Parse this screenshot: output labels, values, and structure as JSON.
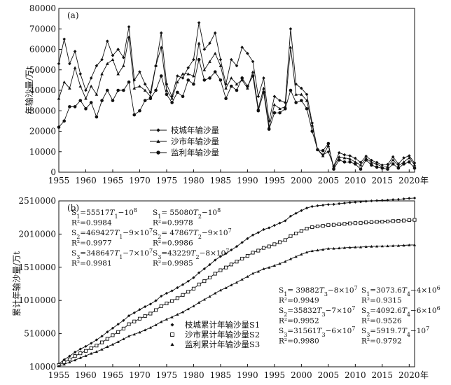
{
  "chart_data": [
    {
      "type": "line",
      "panel_label": "(a)",
      "ylabel": "年输沙量/万t",
      "xunit": "年",
      "xlim": [
        1955,
        2021
      ],
      "ylim": [
        0,
        80000
      ],
      "yticks": [
        0,
        10000,
        20000,
        30000,
        40000,
        50000,
        60000,
        70000,
        80000
      ],
      "xticks": [
        1955,
        1960,
        1965,
        1970,
        1975,
        1980,
        1985,
        1990,
        1995,
        2000,
        2005,
        2010,
        2015,
        2020
      ],
      "legend_position": "lower-left",
      "x": [
        1955,
        1956,
        1957,
        1958,
        1959,
        1960,
        1961,
        1962,
        1963,
        1964,
        1965,
        1966,
        1967,
        1968,
        1969,
        1970,
        1971,
        1972,
        1973,
        1974,
        1975,
        1976,
        1977,
        1978,
        1979,
        1980,
        1981,
        1982,
        1983,
        1984,
        1985,
        1986,
        1987,
        1988,
        1989,
        1990,
        1991,
        1992,
        1993,
        1994,
        1995,
        1996,
        1997,
        1998,
        1999,
        2000,
        2001,
        2002,
        2003,
        2004,
        2005,
        2006,
        2007,
        2008,
        2009,
        2010,
        2011,
        2012,
        2013,
        2014,
        2015,
        2016,
        2017,
        2018,
        2019,
        2020,
        2021
      ],
      "series": [
        {
          "name": "枝城年输沙量",
          "marker": "diamond",
          "values": [
            53000,
            65000,
            53000,
            59000,
            48000,
            40000,
            46000,
            52000,
            55000,
            64000,
            57000,
            60000,
            56000,
            71000,
            45000,
            49000,
            43000,
            39000,
            52000,
            68000,
            43000,
            37000,
            47000,
            46000,
            51000,
            55000,
            73000,
            60000,
            63000,
            68000,
            55000,
            43000,
            55000,
            52000,
            61000,
            58000,
            54000,
            37000,
            46000,
            25000,
            37000,
            35000,
            34000,
            70000,
            43000,
            41000,
            38000,
            24000,
            11000,
            8500,
            10000,
            3000,
            9500,
            8500,
            8000,
            6800,
            4800,
            7800,
            5800,
            4800,
            3500,
            3800,
            7500,
            4000,
            7000,
            8000,
            4500
          ]
        },
        {
          "name": "沙市年输沙量",
          "marker": "triangle",
          "values": [
            36000,
            44000,
            41000,
            51000,
            42000,
            36000,
            42000,
            38000,
            48000,
            53000,
            55000,
            48000,
            52000,
            66000,
            41000,
            42000,
            40000,
            37000,
            52000,
            61000,
            40000,
            36000,
            44000,
            48000,
            48000,
            47000,
            63000,
            50000,
            54000,
            58000,
            52000,
            41000,
            46000,
            43000,
            45000,
            41000,
            49000,
            31000,
            41000,
            22000,
            33000,
            31000,
            32000,
            61000,
            38000,
            38000,
            35000,
            23000,
            11000,
            8000,
            13000,
            2500,
            7500,
            7000,
            6500,
            5000,
            3500,
            6800,
            4800,
            4000,
            2500,
            2700,
            6000,
            3000,
            5000,
            7000,
            3500
          ]
        },
        {
          "name": "监利年输沙量",
          "marker": "circle",
          "values": [
            22000,
            25000,
            32000,
            32000,
            35000,
            31000,
            34000,
            27000,
            35000,
            40000,
            35000,
            40000,
            40000,
            44000,
            28000,
            30000,
            35000,
            36000,
            40000,
            47000,
            38000,
            34000,
            39000,
            37000,
            45000,
            43000,
            55000,
            45000,
            46000,
            49000,
            45000,
            36000,
            42000,
            40000,
            46000,
            42000,
            47000,
            30000,
            39000,
            21000,
            29000,
            29000,
            31000,
            40000,
            34000,
            35000,
            31000,
            20000,
            11000,
            10500,
            14000,
            1500,
            6000,
            5000,
            5000,
            4000,
            1500,
            6000,
            3500,
            2500,
            2000,
            1500,
            4000,
            2000,
            4000,
            5000,
            2000
          ]
        }
      ]
    },
    {
      "type": "line",
      "panel_label": "(b)",
      "ylabel": "累计年输沙量/万t",
      "xunit": "年",
      "xlim": [
        1955,
        2021
      ],
      "ylim": [
        10000,
        2510000
      ],
      "yticks": [
        10000,
        510000,
        1010000,
        1510000,
        2010000,
        2510000
      ],
      "xticks": [
        1955,
        1960,
        1965,
        1970,
        1975,
        1980,
        1985,
        1990,
        1995,
        2000,
        2005,
        2010,
        2015,
        2020
      ],
      "legend_position": "lower-middle",
      "x": [
        1955,
        1956,
        1957,
        1958,
        1959,
        1960,
        1961,
        1962,
        1963,
        1964,
        1965,
        1966,
        1967,
        1968,
        1969,
        1970,
        1971,
        1972,
        1973,
        1974,
        1975,
        1976,
        1977,
        1978,
        1979,
        1980,
        1981,
        1982,
        1983,
        1984,
        1985,
        1986,
        1987,
        1988,
        1989,
        1990,
        1991,
        1992,
        1993,
        1994,
        1995,
        1996,
        1997,
        1998,
        1999,
        2000,
        2001,
        2002,
        2003,
        2004,
        2005,
        2006,
        2007,
        2008,
        2009,
        2010,
        2011,
        2012,
        2013,
        2014,
        2015,
        2016,
        2017,
        2018,
        2019,
        2020,
        2021
      ],
      "series": [
        {
          "name": "枝城累计年输沙量S1",
          "marker": "diamond",
          "values": [
            53000,
            118000,
            171000,
            230000,
            278000,
            318000,
            364000,
            416000,
            471000,
            535000,
            592000,
            652000,
            708000,
            779000,
            824000,
            873000,
            916000,
            955000,
            1007000,
            1075000,
            1118000,
            1155000,
            1202000,
            1248000,
            1299000,
            1354000,
            1427000,
            1487000,
            1550000,
            1618000,
            1673000,
            1716000,
            1771000,
            1823000,
            1884000,
            1942000,
            1996000,
            2033000,
            2079000,
            2104000,
            2141000,
            2176000,
            2210000,
            2280000,
            2323000,
            2364000,
            2402000,
            2426000,
            2437000,
            2445500,
            2455500,
            2458500,
            2468000,
            2476500,
            2484500,
            2491300,
            2496100,
            2503900,
            2509700,
            2514500,
            2518000,
            2521800,
            2529300,
            2533300,
            2540300,
            2548300,
            2552800
          ]
        },
        {
          "name": "沙市累计年输沙量S2",
          "marker": "square",
          "values": [
            36000,
            80000,
            121000,
            172000,
            214000,
            250000,
            292000,
            330000,
            378000,
            431000,
            486000,
            534000,
            586000,
            652000,
            693000,
            735000,
            775000,
            812000,
            864000,
            925000,
            965000,
            1001000,
            1045000,
            1093000,
            1141000,
            1188000,
            1251000,
            1301000,
            1355000,
            1413000,
            1465000,
            1506000,
            1552000,
            1595000,
            1640000,
            1681000,
            1730000,
            1761000,
            1802000,
            1824000,
            1857000,
            1888000,
            1920000,
            1981000,
            2019000,
            2057000,
            2092000,
            2115000,
            2126000,
            2134000,
            2147000,
            2149500,
            2157000,
            2164000,
            2170500,
            2175500,
            2179000,
            2185800,
            2190600,
            2194600,
            2197100,
            2199800,
            2205800,
            2208800,
            2213800,
            2220800,
            2224300
          ]
        },
        {
          "name": "监利累计年输沙量S3",
          "marker": "triangle",
          "values": [
            22000,
            47000,
            79000,
            111000,
            146000,
            177000,
            211000,
            238000,
            273000,
            313000,
            348000,
            388000,
            428000,
            472000,
            500000,
            530000,
            565000,
            601000,
            641000,
            688000,
            726000,
            760000,
            799000,
            836000,
            881000,
            924000,
            979000,
            1024000,
            1070000,
            1119000,
            1164000,
            1200000,
            1242000,
            1282000,
            1328000,
            1370000,
            1417000,
            1447000,
            1486000,
            1507000,
            1536000,
            1565000,
            1596000,
            1636000,
            1670000,
            1705000,
            1736000,
            1756000,
            1767000,
            1777500,
            1791500,
            1793000,
            1799000,
            1804000,
            1809000,
            1813000,
            1814500,
            1820500,
            1824000,
            1826500,
            1828500,
            1830000,
            1834000,
            1836000,
            1840000,
            1845000,
            1847000
          ]
        }
      ]
    }
  ],
  "equations_b": {
    "left_col_1": [
      {
        "lhs": "S",
        "sub": "1",
        "mid": "=55517",
        "var": "T",
        "varsub": "1",
        "rhs": "−10",
        "sup": "8"
      },
      {
        "plain": "R²=0.9984"
      },
      {
        "lhs": "S",
        "sub": "2",
        "mid": "=469427",
        "var": "T",
        "varsub": "1",
        "rhs": "−9×10",
        "sup": "7"
      },
      {
        "plain": "R²=0.9977"
      },
      {
        "lhs": "S",
        "sub": "3",
        "mid": "=348647",
        "var": "T",
        "varsub": "1",
        "rhs": "−7×10",
        "sup": "7"
      },
      {
        "plain": "R²=0.9981"
      }
    ],
    "left_col_2": [
      {
        "lhs": "S",
        "sub": "1",
        "mid": "= 55080",
        "var": "T",
        "varsub": "2",
        "rhs": "−10",
        "sup": "8"
      },
      {
        "plain": "R²=0.9978"
      },
      {
        "lhs": "S",
        "sub": "2",
        "mid": "= 47867",
        "var": "T",
        "varsub": "2",
        "rhs": "−9×10",
        "sup": "7"
      },
      {
        "plain": "R²=0.9986"
      },
      {
        "lhs": "S",
        "sub": "3",
        "mid": "=43229",
        "var": "T",
        "varsub": "2",
        "rhs": "−8×10",
        "sup": "7"
      },
      {
        "plain": "R²=0.9985"
      }
    ],
    "right_col_1": [
      {
        "lhs": "S",
        "sub": "1",
        "mid": "= 39882",
        "var": "T",
        "varsub": "3",
        "rhs": "−8×10",
        "sup": "7"
      },
      {
        "plain": "R²=0.9949"
      },
      {
        "lhs": "S",
        "sub": "2",
        "mid": "=35832",
        "var": "T",
        "varsub": "3",
        "rhs": "−7×10",
        "sup": "7"
      },
      {
        "plain": "R²=0.9952"
      },
      {
        "lhs": "S",
        "sub": "3",
        "mid": "=31561",
        "var": "T",
        "varsub": "3",
        "rhs": "−6×10",
        "sup": "7"
      },
      {
        "plain": "R²=0.9980"
      }
    ],
    "right_col_2": [
      {
        "lhs": "S",
        "sub": "1",
        "mid": "=3073.6",
        "var": "T",
        "varsub": "4",
        "rhs": "−4×10",
        "sup": "6"
      },
      {
        "plain": "R²=0.9315"
      },
      {
        "lhs": "S",
        "sub": "2",
        "mid": "=4092.6",
        "var": "T",
        "varsub": "4",
        "rhs": "−6×10",
        "sup": "6"
      },
      {
        "plain": "R²=0.9526"
      },
      {
        "lhs": "S",
        "sub": "3",
        "mid": "=5919.7",
        "var": "T",
        "varsub": "4",
        "rhs": "−10",
        "sup": "7"
      },
      {
        "plain": "R²=0.9792"
      }
    ]
  }
}
